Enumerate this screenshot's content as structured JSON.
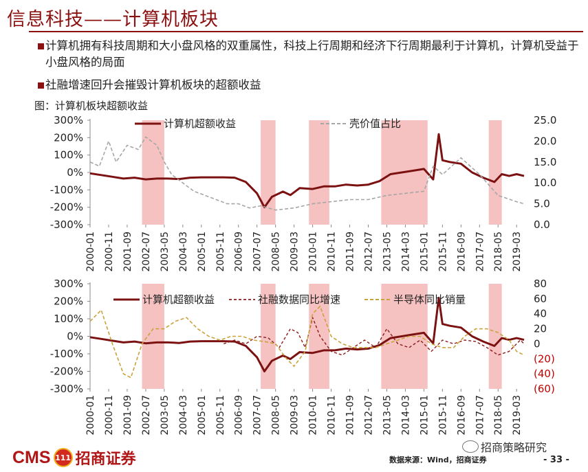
{
  "header": {
    "title": "信息科技——计算机板块"
  },
  "bullets": [
    "计算机拥有科技周期和大小盘风格的双重属性，科技上行周期和经济下行周期最利于计算机，计算机受益于小盘风格的局面",
    "社融增速回升会摧毁计算机板块的超额收益"
  ],
  "caption": "图：计算机板块超额收益",
  "footer": {
    "logo_text": "CMS",
    "logo_badge": "111",
    "brand": "招商证券",
    "source": "数据来源：Wind，招商证券",
    "wechat": "招商策略研究",
    "page": "- 33 -"
  },
  "colors": {
    "accent": "#8b1010",
    "excess_line": "#7b1111",
    "gray_dashed": "#a6a6a6",
    "tsf_dashed": "#8b1a1a",
    "semi_dashed": "#c9a23a",
    "shade": "#f4b6b6"
  },
  "chart_data": [
    {
      "type": "line",
      "x_ticks": [
        "2000-01",
        "2000-11",
        "2001-09",
        "2002-07",
        "2003-05",
        "2004-03",
        "2005-01",
        "2005-11",
        "2006-09",
        "2007-07",
        "2008-05",
        "2009-03",
        "2010-01",
        "2010-11",
        "2011-09",
        "2012-07",
        "2013-05",
        "2014-03",
        "2015-01",
        "2015-11",
        "2016-09",
        "2017-07",
        "2018-05",
        "2019-03"
      ],
      "y_left_ticks": [
        "300%",
        "200%",
        "100%",
        "0%",
        "-100%",
        "-200%",
        "-300%"
      ],
      "y_left_range": [
        -300,
        300
      ],
      "y_right_ticks": [
        "25.0",
        "20.0",
        "15.0",
        "10.0",
        "5.0",
        "0.0"
      ],
      "y_right_range": [
        0,
        25
      ],
      "shaded_periods": [
        [
          "2002-05",
          "2003-05"
        ],
        [
          "2007-09",
          "2008-05"
        ],
        [
          "2009-11",
          "2010-10"
        ],
        [
          "2013-02",
          "2015-03"
        ],
        [
          "2017-12",
          "2018-07"
        ]
      ],
      "series": [
        {
          "name": "计算机超额收益",
          "axis": "left",
          "points": [
            [
              "2000-01",
              -5
            ],
            [
              "2000-07",
              -15
            ],
            [
              "2001-01",
              -25
            ],
            [
              "2001-07",
              -35
            ],
            [
              "2002-01",
              -30
            ],
            [
              "2002-07",
              -40
            ],
            [
              "2003-01",
              -35
            ],
            [
              "2003-07",
              -35
            ],
            [
              "2004-01",
              -38
            ],
            [
              "2004-07",
              -30
            ],
            [
              "2005-01",
              -28
            ],
            [
              "2005-07",
              -28
            ],
            [
              "2006-01",
              -28
            ],
            [
              "2006-07",
              -30
            ],
            [
              "2007-01",
              -55
            ],
            [
              "2007-07",
              -120
            ],
            [
              "2007-11",
              -200
            ],
            [
              "2008-03",
              -140
            ],
            [
              "2008-09",
              -110
            ],
            [
              "2009-01",
              -130
            ],
            [
              "2009-06",
              -90
            ],
            [
              "2010-01",
              -95
            ],
            [
              "2010-07",
              -80
            ],
            [
              "2011-01",
              -80
            ],
            [
              "2011-07",
              -70
            ],
            [
              "2012-01",
              -75
            ],
            [
              "2012-07",
              -70
            ],
            [
              "2013-01",
              -50
            ],
            [
              "2013-07",
              -10
            ],
            [
              "2014-01",
              0
            ],
            [
              "2014-07",
              10
            ],
            [
              "2015-01",
              20
            ],
            [
              "2015-06",
              -40
            ],
            [
              "2015-09",
              220
            ],
            [
              "2015-11",
              70
            ],
            [
              "2016-03",
              60
            ],
            [
              "2016-09",
              50
            ],
            [
              "2017-03",
              0
            ],
            [
              "2017-09",
              -30
            ],
            [
              "2018-03",
              -55
            ],
            [
              "2018-07",
              -10
            ],
            [
              "2018-11",
              -20
            ],
            [
              "2019-03",
              -10
            ],
            [
              "2019-07",
              -20
            ]
          ]
        },
        {
          "name": "壳价值占比",
          "axis": "right",
          "points": [
            [
              "2000-01",
              15
            ],
            [
              "2000-06",
              14
            ],
            [
              "2000-11",
              20
            ],
            [
              "2001-03",
              15
            ],
            [
              "2001-09",
              19
            ],
            [
              "2002-03",
              18
            ],
            [
              "2002-07",
              21
            ],
            [
              "2003-01",
              19
            ],
            [
              "2003-05",
              15
            ],
            [
              "2003-09",
              12
            ],
            [
              "2004-03",
              10
            ],
            [
              "2004-09",
              8
            ],
            [
              "2005-03",
              7
            ],
            [
              "2005-09",
              6
            ],
            [
              "2006-03",
              5
            ],
            [
              "2006-09",
              5
            ],
            [
              "2007-03",
              4
            ],
            [
              "2007-09",
              4.5
            ],
            [
              "2008-05",
              3.5
            ],
            [
              "2009-03",
              4
            ],
            [
              "2010-01",
              5
            ],
            [
              "2010-11",
              5.5
            ],
            [
              "2011-09",
              6
            ],
            [
              "2012-07",
              6
            ],
            [
              "2013-05",
              7
            ],
            [
              "2014-03",
              7.5
            ],
            [
              "2015-01",
              8
            ],
            [
              "2015-06",
              14
            ],
            [
              "2015-11",
              12
            ],
            [
              "2016-09",
              16
            ],
            [
              "2017-07",
              12
            ],
            [
              "2018-05",
              7
            ],
            [
              "2019-03",
              5.5
            ],
            [
              "2019-07",
              5
            ]
          ]
        }
      ]
    },
    {
      "type": "line",
      "x_ticks": [
        "2000-01",
        "2000-11",
        "2001-09",
        "2002-07",
        "2003-05",
        "2004-03",
        "2005-01",
        "2005-11",
        "2006-09",
        "2007-07",
        "2008-05",
        "2009-03",
        "2010-01",
        "2010-11",
        "2011-09",
        "2012-07",
        "2013-05",
        "2014-03",
        "2015-01",
        "2015-11",
        "2016-09",
        "2017-07",
        "2018-05",
        "2019-03"
      ],
      "y_left_ticks": [
        "300%",
        "200%",
        "100%",
        "0%",
        "-100%",
        "-200%",
        "-300%"
      ],
      "y_left_range": [
        -300,
        300
      ],
      "y_right_ticks": [
        "80",
        "60",
        "40",
        "20",
        "0",
        "(20)",
        "(40)",
        "(60)"
      ],
      "y_right_range": [
        -60,
        80
      ],
      "shaded_periods": [
        [
          "2002-05",
          "2003-05"
        ],
        [
          "2007-09",
          "2008-05"
        ],
        [
          "2009-11",
          "2010-10"
        ],
        [
          "2013-02",
          "2015-03"
        ],
        [
          "2017-12",
          "2018-07"
        ]
      ],
      "series": [
        {
          "name": "计算机超额收益",
          "axis": "left",
          "points": [
            [
              "2000-01",
              -5
            ],
            [
              "2000-07",
              -15
            ],
            [
              "2001-01",
              -25
            ],
            [
              "2001-07",
              -35
            ],
            [
              "2002-01",
              -30
            ],
            [
              "2002-07",
              -40
            ],
            [
              "2003-01",
              -35
            ],
            [
              "2003-07",
              -35
            ],
            [
              "2004-01",
              -38
            ],
            [
              "2004-07",
              -30
            ],
            [
              "2005-01",
              -28
            ],
            [
              "2005-07",
              -28
            ],
            [
              "2006-01",
              -28
            ],
            [
              "2006-07",
              -30
            ],
            [
              "2007-01",
              -55
            ],
            [
              "2007-07",
              -120
            ],
            [
              "2007-11",
              -200
            ],
            [
              "2008-03",
              -140
            ],
            [
              "2008-09",
              -110
            ],
            [
              "2009-01",
              -130
            ],
            [
              "2009-06",
              -90
            ],
            [
              "2010-01",
              -95
            ],
            [
              "2010-07",
              -80
            ],
            [
              "2011-01",
              -80
            ],
            [
              "2011-07",
              -70
            ],
            [
              "2012-01",
              -75
            ],
            [
              "2012-07",
              -70
            ],
            [
              "2013-01",
              -50
            ],
            [
              "2013-07",
              -10
            ],
            [
              "2014-01",
              0
            ],
            [
              "2014-07",
              10
            ],
            [
              "2015-01",
              20
            ],
            [
              "2015-06",
              -40
            ],
            [
              "2015-09",
              220
            ],
            [
              "2015-11",
              70
            ],
            [
              "2016-03",
              60
            ],
            [
              "2016-09",
              50
            ],
            [
              "2017-03",
              0
            ],
            [
              "2017-09",
              -30
            ],
            [
              "2018-03",
              -55
            ],
            [
              "2018-07",
              -10
            ],
            [
              "2018-11",
              -20
            ],
            [
              "2019-03",
              -10
            ],
            [
              "2019-07",
              -20
            ]
          ]
        },
        {
          "name": "社融数据同比增速",
          "axis": "right",
          "points": [
            [
              "2006-01",
              0
            ],
            [
              "2006-07",
              5
            ],
            [
              "2007-01",
              0
            ],
            [
              "2007-07",
              10
            ],
            [
              "2008-01",
              8
            ],
            [
              "2008-07",
              -5
            ],
            [
              "2009-01",
              20
            ],
            [
              "2009-05",
              15
            ],
            [
              "2009-09",
              -5
            ],
            [
              "2010-01",
              35
            ],
            [
              "2010-05",
              10
            ],
            [
              "2010-11",
              -10
            ],
            [
              "2011-05",
              -15
            ],
            [
              "2011-11",
              -5
            ],
            [
              "2012-05",
              5
            ],
            [
              "2012-11",
              -5
            ],
            [
              "2013-05",
              20
            ],
            [
              "2013-11",
              0
            ],
            [
              "2014-05",
              -5
            ],
            [
              "2014-11",
              5
            ],
            [
              "2015-05",
              -10
            ],
            [
              "2015-11",
              5
            ],
            [
              "2016-05",
              0
            ],
            [
              "2016-11",
              5
            ],
            [
              "2017-05",
              3
            ],
            [
              "2017-11",
              -5
            ],
            [
              "2018-05",
              -15
            ],
            [
              "2018-11",
              -10
            ],
            [
              "2019-05",
              5
            ],
            [
              "2019-07",
              0
            ]
          ]
        },
        {
          "name": "半导体同比销量",
          "axis": "right",
          "points": [
            [
              "2000-01",
              30
            ],
            [
              "2000-07",
              45
            ],
            [
              "2001-01",
              0
            ],
            [
              "2001-07",
              -40
            ],
            [
              "2001-11",
              -45
            ],
            [
              "2002-05",
              0
            ],
            [
              "2002-11",
              20
            ],
            [
              "2003-05",
              20
            ],
            [
              "2003-11",
              30
            ],
            [
              "2004-05",
              35
            ],
            [
              "2004-11",
              20
            ],
            [
              "2005-05",
              10
            ],
            [
              "2005-11",
              5
            ],
            [
              "2006-05",
              10
            ],
            [
              "2006-11",
              10
            ],
            [
              "2007-05",
              5
            ],
            [
              "2007-11",
              3
            ],
            [
              "2008-05",
              0
            ],
            [
              "2008-11",
              -20
            ],
            [
              "2009-03",
              -30
            ],
            [
              "2009-09",
              -10
            ],
            [
              "2010-01",
              40
            ],
            [
              "2010-05",
              50
            ],
            [
              "2010-11",
              10
            ],
            [
              "2011-05",
              0
            ],
            [
              "2011-11",
              -5
            ],
            [
              "2012-05",
              -5
            ],
            [
              "2012-11",
              -5
            ],
            [
              "2013-05",
              0
            ],
            [
              "2013-11",
              5
            ],
            [
              "2014-05",
              10
            ],
            [
              "2014-11",
              10
            ],
            [
              "2015-05",
              0
            ],
            [
              "2015-11",
              -5
            ],
            [
              "2016-05",
              -5
            ],
            [
              "2016-11",
              10
            ],
            [
              "2017-05",
              20
            ],
            [
              "2017-11",
              20
            ],
            [
              "2018-05",
              15
            ],
            [
              "2018-11",
              5
            ],
            [
              "2019-03",
              -10
            ],
            [
              "2019-07",
              -15
            ]
          ]
        }
      ]
    }
  ]
}
